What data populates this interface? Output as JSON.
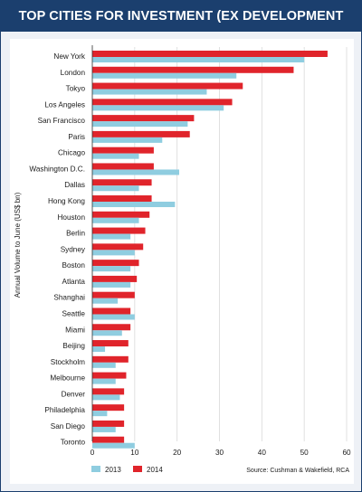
{
  "chart_data": {
    "type": "bar",
    "orientation": "horizontal",
    "title": "TOP CITIES FOR INVESTMENT (EX DEVELOPMENT SITES)",
    "ylabel": "Annual Volume to June (US$ bn)",
    "xlim": [
      0,
      60
    ],
    "xticks": [
      0,
      10,
      20,
      30,
      40,
      50,
      60
    ],
    "grid": true,
    "legend_position": "bottom-left",
    "source": "Source: Cushman & Wakefield, RCA",
    "categories": [
      "New York",
      "London",
      "Tokyo",
      "Los Angeles",
      "San Francisco",
      "Paris",
      "Chicago",
      "Washington D.C.",
      "Dallas",
      "Hong Kong",
      "Houston",
      "Berlin",
      "Sydney",
      "Boston",
      "Atlanta",
      "Shanghai",
      "Seattle",
      "Miami",
      "Beijing",
      "Stockholm",
      "Melbourne",
      "Denver",
      "Philadelphia",
      "San Diego",
      "Toronto"
    ],
    "series": [
      {
        "name": "2014",
        "color": "#e0242b",
        "values": [
          55.5,
          47.5,
          35.5,
          33.0,
          24.0,
          23.0,
          14.5,
          14.5,
          14.0,
          14.0,
          13.5,
          12.5,
          12.0,
          11.0,
          10.5,
          10.0,
          9.0,
          9.0,
          8.5,
          8.5,
          8.0,
          7.5,
          7.5,
          7.5,
          7.5
        ]
      },
      {
        "name": "2013",
        "color": "#8fcde0",
        "values": [
          50.0,
          34.0,
          27.0,
          31.0,
          22.5,
          16.5,
          11.0,
          20.5,
          11.0,
          19.5,
          11.0,
          9.0,
          10.0,
          9.0,
          9.0,
          6.0,
          10.0,
          7.0,
          3.0,
          5.5,
          5.5,
          6.5,
          3.5,
          5.5,
          10.0
        ]
      }
    ],
    "legend": [
      {
        "name": "2013",
        "color": "#8fcde0"
      },
      {
        "name": "2014",
        "color": "#e0242b"
      }
    ]
  }
}
